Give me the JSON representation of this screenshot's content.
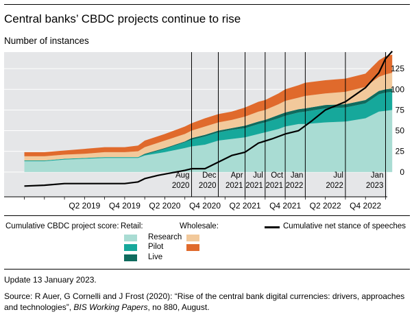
{
  "title": "Central banks’ CBDC projects continue to rise",
  "subtitle": "Number of instances",
  "chart_data": {
    "type": "area",
    "y_ticks": [
      0,
      25,
      50,
      75,
      100,
      125
    ],
    "ylim": [
      -30,
      145
    ],
    "x_ticks": [
      "Q2 2019",
      "Q4 2019",
      "Q2 2020",
      "Q4 2020",
      "Q2 2021",
      "Q4 2021",
      "Q2 2022",
      "Q4 2022"
    ],
    "x": [
      "2018-07",
      "2018-10",
      "2019-01",
      "2019-04",
      "2019-07",
      "2019-10",
      "2019-12",
      "2020-01",
      "2020-04",
      "2020-07",
      "2020-08",
      "2020-10",
      "2020-12",
      "2021-02",
      "2021-04",
      "2021-06",
      "2021-07",
      "2021-09",
      "2021-10",
      "2021-12",
      "2022-01",
      "2022-04",
      "2022-07",
      "2022-10",
      "2022-12",
      "2023-01",
      "2023-02"
    ],
    "series": [
      {
        "name": "Research",
        "group": "Retail",
        "values": [
          13,
          13,
          15,
          16,
          17,
          17,
          17,
          20,
          24,
          29,
          31,
          33,
          38,
          40,
          42,
          46,
          48,
          52,
          55,
          58,
          58,
          60,
          61,
          65,
          73,
          74,
          75
        ]
      },
      {
        "name": "Pilot",
        "group": "Retail",
        "values": [
          1,
          1,
          1,
          1,
          1,
          1,
          1,
          1,
          4,
          7,
          8,
          10,
          10,
          11,
          11,
          12,
          12,
          13,
          13,
          14,
          15,
          17,
          17,
          18,
          21,
          22,
          22
        ]
      },
      {
        "name": "Live",
        "group": "Retail",
        "values": [
          0,
          0,
          0,
          0,
          0,
          0,
          0,
          1,
          1,
          1,
          2,
          2,
          2,
          2,
          3,
          3,
          3,
          4,
          4,
          4,
          4,
          4,
          4,
          4,
          4,
          4,
          4
        ]
      },
      {
        "name": "Wholesale 1",
        "group": "Wholesale",
        "values": [
          5,
          5,
          5,
          5,
          6,
          6,
          7,
          8,
          9,
          9,
          9,
          10,
          10,
          10,
          11,
          12,
          12,
          13,
          14,
          14,
          15,
          14,
          15,
          16,
          17,
          18,
          19
        ]
      },
      {
        "name": "Wholesale 2",
        "group": "Wholesale",
        "values": [
          5,
          5,
          5,
          6,
          6,
          6,
          7,
          8,
          8,
          9,
          9,
          10,
          10,
          10,
          11,
          12,
          12,
          13,
          14,
          15,
          16,
          16,
          16,
          16,
          20,
          22,
          22
        ]
      }
    ],
    "speeches": {
      "name": "Cumulative net stance of speeches",
      "x": [
        "2018-07",
        "2018-10",
        "2019-01",
        "2019-04",
        "2019-07",
        "2019-10",
        "2019-12",
        "2020-01",
        "2020-03",
        "2020-05",
        "2020-07",
        "2020-08",
        "2020-10",
        "2020-12",
        "2021-02",
        "2021-04",
        "2021-06",
        "2021-08",
        "2021-10",
        "2021-12",
        "2022-02",
        "2022-04",
        "2022-07",
        "2022-10",
        "2022-12",
        "2023-01",
        "2023-02"
      ],
      "values": [
        -17,
        -16,
        -14,
        -14,
        -14,
        -14,
        -12,
        -8,
        -4,
        -1,
        2,
        4,
        4,
        12,
        20,
        24,
        35,
        40,
        46,
        50,
        62,
        75,
        85,
        102,
        120,
        137,
        146
      ]
    },
    "annotations": [
      {
        "x": "2020-08",
        "label_top": "Aug",
        "label_bottom": "2020"
      },
      {
        "x": "2020-12",
        "label_top": "Dec",
        "label_bottom": "2020"
      },
      {
        "x": "2021-04",
        "label_top": "Apr",
        "label_bottom": "2021"
      },
      {
        "x": "2021-07",
        "label_top": "Jul",
        "label_bottom": "2021"
      },
      {
        "x": "2021-10",
        "label_top": "Oct",
        "label_bottom": "2021"
      },
      {
        "x": "2022-01",
        "label_top": "Jan",
        "label_bottom": "2022"
      },
      {
        "x": "2022-07",
        "label_top": "Jul",
        "label_bottom": "2022"
      },
      {
        "x": "2023-01",
        "label_top": "Jan",
        "label_bottom": "2023"
      }
    ],
    "colors": {
      "Research": "#a9dcd3",
      "Pilot": "#16a89b",
      "Live": "#0f6b5e",
      "Wholesale 1": "#f2c99b",
      "Wholesale 2": "#e06a2c",
      "speeches": "#000000",
      "plot_bg": "#e5e6e8"
    }
  },
  "legend": {
    "score_label": "Cumulative CBDC project score:",
    "retail_label": "Retail:",
    "wholesale_label": "Wholesale:",
    "research": "Research",
    "pilot": "Pilot",
    "live": "Live",
    "speeches": "Cumulative net stance of speeches"
  },
  "footer": {
    "update": "Update 13 January 2023.",
    "source_a": "Source: R Auer, G Cornelli and J Frost (2020): “Rise of the central bank digital currencies: drivers, approaches and technologies”, ",
    "source_b": "BIS Working Papers",
    "source_c": ", no 880, August."
  }
}
